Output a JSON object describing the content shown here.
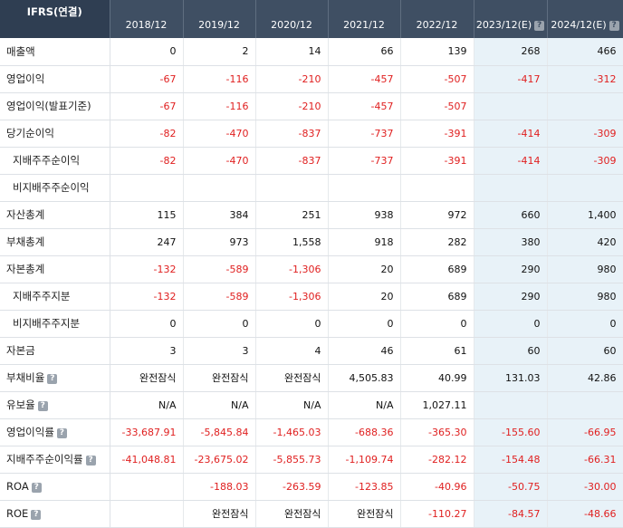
{
  "table": {
    "corner_label": "IFRS(연결)",
    "columns": [
      {
        "label": "2018/12",
        "est": false
      },
      {
        "label": "2019/12",
        "est": false
      },
      {
        "label": "2020/12",
        "est": false
      },
      {
        "label": "2021/12",
        "est": false
      },
      {
        "label": "2022/12",
        "est": false
      },
      {
        "label": "2023/12(E)",
        "est": true
      },
      {
        "label": "2024/12(E)",
        "est": true
      }
    ],
    "rows": [
      {
        "label": "매출액",
        "sub": false,
        "help": false,
        "values": [
          "0",
          "2",
          "14",
          "66",
          "139",
          "268",
          "466"
        ]
      },
      {
        "label": "영업이익",
        "sub": false,
        "help": false,
        "values": [
          "-67",
          "-116",
          "-210",
          "-457",
          "-507",
          "-417",
          "-312"
        ]
      },
      {
        "label": "영업이익(발표기준)",
        "sub": false,
        "help": false,
        "values": [
          "-67",
          "-116",
          "-210",
          "-457",
          "-507",
          "",
          ""
        ]
      },
      {
        "label": "당기순이익",
        "sub": false,
        "help": false,
        "values": [
          "-82",
          "-470",
          "-837",
          "-737",
          "-391",
          "-414",
          "-309"
        ]
      },
      {
        "label": "지배주주순이익",
        "sub": true,
        "help": false,
        "values": [
          "-82",
          "-470",
          "-837",
          "-737",
          "-391",
          "-414",
          "-309"
        ]
      },
      {
        "label": "비지배주주순이익",
        "sub": true,
        "help": false,
        "values": [
          "",
          "",
          "",
          "",
          "",
          "",
          ""
        ]
      },
      {
        "label": "자산총계",
        "sub": false,
        "help": false,
        "values": [
          "115",
          "384",
          "251",
          "938",
          "972",
          "660",
          "1,400"
        ]
      },
      {
        "label": "부채총계",
        "sub": false,
        "help": false,
        "values": [
          "247",
          "973",
          "1,558",
          "918",
          "282",
          "380",
          "420"
        ]
      },
      {
        "label": "자본총계",
        "sub": false,
        "help": false,
        "values": [
          "-132",
          "-589",
          "-1,306",
          "20",
          "689",
          "290",
          "980"
        ]
      },
      {
        "label": "지배주주지분",
        "sub": true,
        "help": false,
        "values": [
          "-132",
          "-589",
          "-1,306",
          "20",
          "689",
          "290",
          "980"
        ]
      },
      {
        "label": "비지배주주지분",
        "sub": true,
        "help": false,
        "values": [
          "0",
          "0",
          "0",
          "0",
          "0",
          "0",
          "0"
        ]
      },
      {
        "label": "자본금",
        "sub": false,
        "help": false,
        "values": [
          "3",
          "3",
          "4",
          "46",
          "61",
          "60",
          "60"
        ]
      },
      {
        "label": "부채비율",
        "sub": false,
        "help": true,
        "values": [
          "완전잠식",
          "완전잠식",
          "완전잠식",
          "4,505.83",
          "40.99",
          "131.03",
          "42.86"
        ]
      },
      {
        "label": "유보율",
        "sub": false,
        "help": true,
        "values": [
          "N/A",
          "N/A",
          "N/A",
          "N/A",
          "1,027.11",
          "",
          ""
        ]
      },
      {
        "label": "영업이익률",
        "sub": false,
        "help": true,
        "values": [
          "-33,687.91",
          "-5,845.84",
          "-1,465.03",
          "-688.36",
          "-365.30",
          "-155.60",
          "-66.95"
        ]
      },
      {
        "label": "지배주주순이익률",
        "sub": false,
        "help": true,
        "values": [
          "-41,048.81",
          "-23,675.02",
          "-5,855.73",
          "-1,109.74",
          "-282.12",
          "-154.48",
          "-66.31"
        ]
      },
      {
        "label": "ROA",
        "sub": false,
        "help": true,
        "values": [
          "",
          "-188.03",
          "-263.59",
          "-123.85",
          "-40.96",
          "-50.75",
          "-30.00"
        ]
      },
      {
        "label": "ROE",
        "sub": false,
        "help": true,
        "values": [
          "",
          "완전잠식",
          "완전잠식",
          "완전잠식",
          "-110.27",
          "-84.57",
          "-48.66"
        ]
      }
    ]
  },
  "help_glyph": "?",
  "colors": {
    "header_bg": "#3f4f63",
    "negative": "#e02020",
    "estimate_bg": "#e8f2f8"
  }
}
